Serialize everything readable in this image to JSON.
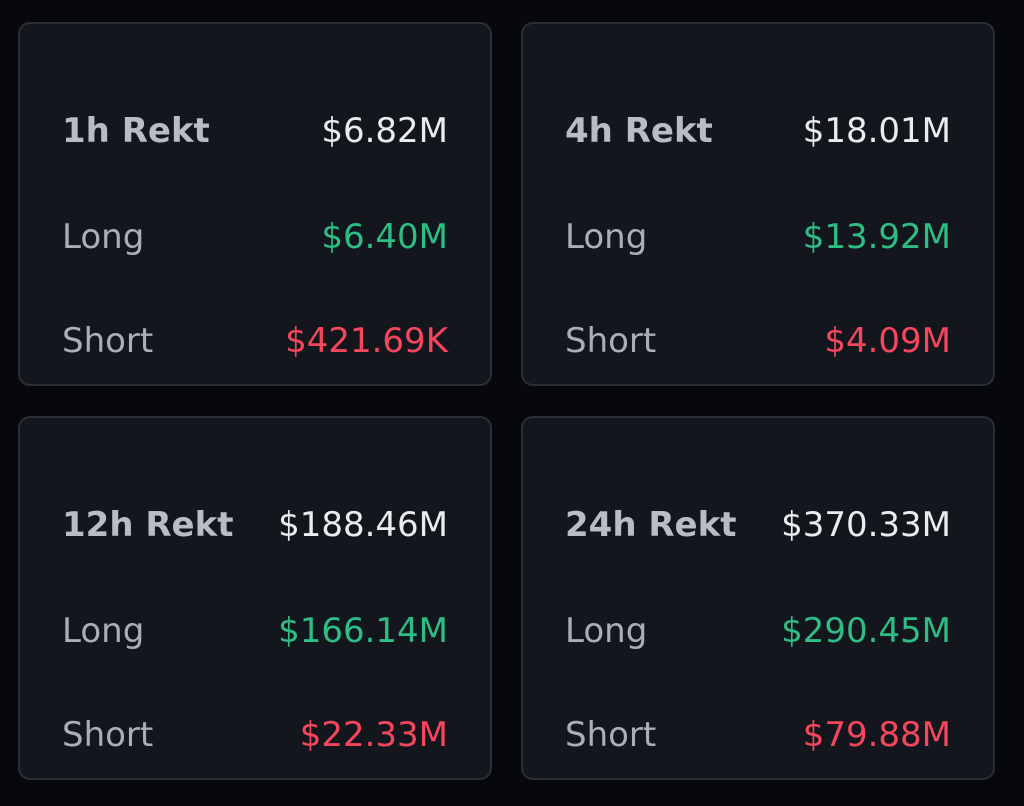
{
  "cards": [
    {
      "title": "1h Rekt",
      "total": "$6.82M",
      "rows": [
        {
          "label": "Long",
          "value": "$6.40M"
        },
        {
          "label": "Short",
          "value": "$421.69K"
        }
      ]
    },
    {
      "title": "4h Rekt",
      "total": "$18.01M",
      "rows": [
        {
          "label": "Long",
          "value": "$13.92M"
        },
        {
          "label": "Short",
          "value": "$4.09M"
        }
      ]
    },
    {
      "title": "12h Rekt",
      "total": "$188.46M",
      "rows": [
        {
          "label": "Long",
          "value": "$166.14M"
        },
        {
          "label": "Short",
          "value": "$22.33M"
        }
      ]
    },
    {
      "title": "24h Rekt",
      "total": "$370.33M",
      "rows": [
        {
          "label": "Long",
          "value": "$290.45M"
        },
        {
          "label": "Short",
          "value": "$79.88M"
        }
      ]
    }
  ]
}
